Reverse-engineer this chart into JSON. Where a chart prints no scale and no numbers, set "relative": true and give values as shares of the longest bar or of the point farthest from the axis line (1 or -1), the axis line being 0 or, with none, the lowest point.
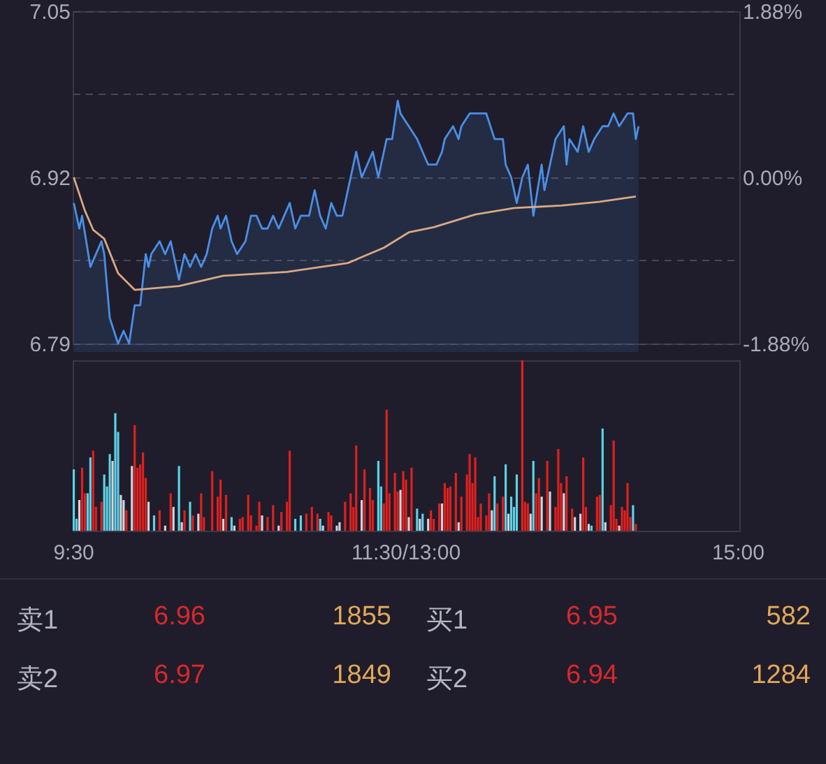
{
  "chart_data": [
    {
      "type": "line",
      "tick_labels": "y",
      "grid": "y",
      "categories": [
        null,
        null,
        null,
        null,
        null,
        null,
        null,
        null,
        null,
        null,
        null,
        null,
        null,
        null,
        null,
        null,
        null,
        null,
        null,
        null,
        null,
        null,
        null,
        null,
        null,
        null,
        null,
        null,
        null,
        null,
        null,
        null,
        null,
        null,
        null,
        null,
        null,
        null,
        null,
        null,
        null,
        null,
        null,
        null,
        null,
        null,
        null,
        null,
        null,
        null,
        null,
        null,
        null,
        null,
        null,
        null,
        null,
        null,
        null,
        null,
        null,
        null,
        null,
        null,
        null,
        null,
        null,
        null,
        null,
        null,
        null,
        null,
        null,
        null,
        null,
        null,
        null,
        null,
        null,
        null,
        null,
        null,
        null,
        null,
        null,
        null,
        null,
        null,
        null,
        null,
        null,
        null,
        null,
        null,
        null,
        null,
        null,
        null,
        null,
        null,
        null,
        null,
        null,
        null,
        null,
        null,
        null,
        null,
        null,
        null,
        null,
        null,
        null,
        null,
        null,
        null,
        null,
        null,
        null,
        null,
        null,
        null,
        null,
        null,
        null,
        null,
        null,
        null,
        null,
        null,
        null,
        null,
        null,
        null,
        null,
        null,
        null,
        null,
        null,
        null,
        null,
        null,
        null,
        null,
        null,
        null,
        null,
        null,
        null,
        null,
        null,
        null,
        null,
        null,
        null,
        null,
        null,
        null,
        null,
        null,
        null,
        null,
        null,
        null,
        null,
        null,
        null,
        null,
        null,
        null,
        null,
        null,
        null,
        null,
        null,
        null,
        null,
        null,
        null,
        null,
        null,
        null,
        null,
        null,
        null,
        null,
        null,
        null,
        null,
        null,
        null,
        null,
        null,
        null,
        null,
        null,
        null,
        null,
        null,
        null,
        null,
        null,
        null,
        null,
        null,
        null,
        null,
        null,
        null,
        null,
        null,
        null,
        null,
        null,
        null,
        null,
        null,
        null,
        null,
        null,
        null,
        null,
        null,
        null,
        null,
        null,
        null,
        null,
        null,
        null,
        null,
        null,
        null,
        null,
        null,
        null,
        null,
        null,
        null,
        null,
        null
      ],
      "ylim": [
        6.79,
        7.05
      ],
      "yticks": [
        6.79,
        {
          "value": 6.855,
          "label": null
        },
        6.92,
        {
          "value": 6.985,
          "label": null
        },
        7.05
      ],
      "y2lim": [
        -1.88,
        1.88
      ],
      "y2ticks": [
        {
          "value": -1.88,
          "label": "-1.88%"
        },
        {
          "value": 0,
          "label": "0.00%"
        },
        {
          "value": 1.88,
          "label": "1.88%"
        }
      ],
      "series": [
        {
          "type": "area",
          "color": "#4a8fe6",
          "values": [
            6.9,
            null,
            6.88,
            6.89,
            null,
            null,
            6.85,
            null,
            6.86,
            null,
            6.87,
            6.86,
            null,
            6.81,
            null,
            null,
            6.79,
            null,
            6.8,
            null,
            6.79,
            null,
            6.82,
            null,
            6.82,
            null,
            6.86,
            6.85,
            6.86,
            null,
            null,
            6.87,
            null,
            6.86,
            null,
            6.87,
            6.86,
            null,
            6.84,
            null,
            6.86,
            null,
            6.85,
            null,
            6.86,
            null,
            6.85,
            null,
            6.86,
            null,
            6.88,
            null,
            6.89,
            6.88,
            null,
            6.89,
            null,
            6.87,
            null,
            6.86,
            null,
            null,
            6.87,
            null,
            6.89,
            null,
            6.89,
            null,
            6.88,
            null,
            6.88,
            null,
            6.89,
            null,
            6.88,
            null,
            6.89,
            null,
            6.9,
            null,
            6.88,
            null,
            6.89,
            null,
            null,
            6.89,
            null,
            6.91,
            null,
            6.89,
            null,
            6.88,
            null,
            6.9,
            null,
            6.89,
            null,
            6.89,
            null,
            6.91,
            null,
            null,
            6.94,
            null,
            6.92,
            null,
            6.93,
            null,
            6.94,
            null,
            6.92,
            null,
            null,
            6.95,
            null,
            6.95,
            null,
            6.98,
            6.97,
            null,
            null,
            6.96,
            null,
            null,
            6.95,
            null,
            null,
            null,
            6.93,
            null,
            null,
            6.93,
            null,
            6.94,
            6.95,
            null,
            null,
            6.96,
            null,
            6.95,
            6.96,
            null,
            null,
            6.97,
            null,
            null,
            null,
            null,
            null,
            6.97,
            null,
            null,
            6.95,
            null,
            null,
            6.95,
            6.93,
            null,
            6.92,
            null,
            6.9,
            null,
            6.92,
            null,
            6.93,
            null,
            6.89,
            null,
            null,
            6.93,
            6.91,
            null,
            6.93,
            null,
            6.95,
            null,
            null,
            6.96,
            6.93,
            6.95,
            null,
            null,
            6.94,
            null,
            6.96,
            null,
            6.94,
            null,
            6.95,
            null,
            null,
            6.96,
            null,
            6.96,
            null,
            6.97,
            null,
            6.96,
            null,
            null,
            6.97,
            null,
            6.97,
            6.95,
            6.96,
            null,
            null,
            null,
            null,
            null,
            null,
            null,
            null,
            null,
            null,
            null,
            null,
            null,
            null,
            null,
            null,
            null,
            null,
            null,
            null,
            null,
            null,
            null,
            null,
            null,
            null,
            null,
            null,
            null,
            null,
            null,
            null,
            null,
            null,
            null,
            null
          ]
        },
        {
          "type": "line",
          "color": "#d9a982",
          "values": [
            6.92,
            null,
            null,
            null,
            6.894,
            null,
            null,
            6.879,
            null,
            null,
            null,
            6.872,
            null,
            null,
            null,
            null,
            6.845,
            null,
            null,
            null,
            null,
            null,
            6.832,
            null,
            null,
            null,
            null,
            null,
            null,
            null,
            null,
            null,
            null,
            null,
            null,
            null,
            null,
            null,
            6.835,
            null,
            null,
            null,
            null,
            null,
            null,
            null,
            null,
            null,
            null,
            null,
            null,
            null,
            null,
            null,
            6.843,
            null,
            null,
            null,
            null,
            null,
            null,
            null,
            null,
            null,
            null,
            null,
            null,
            null,
            null,
            null,
            null,
            null,
            null,
            null,
            null,
            null,
            null,
            6.846,
            null,
            null,
            null,
            null,
            null,
            null,
            null,
            null,
            null,
            null,
            null,
            null,
            null,
            null,
            null,
            null,
            null,
            null,
            null,
            null,
            null,
            6.853,
            null,
            null,
            null,
            null,
            null,
            null,
            null,
            null,
            null,
            null,
            null,
            null,
            6.865,
            null,
            null,
            null,
            null,
            null,
            null,
            null,
            null,
            6.877,
            null,
            null,
            null,
            null,
            null,
            null,
            null,
            null,
            6.881,
            null,
            null,
            null,
            null,
            null,
            null,
            null,
            null,
            null,
            null,
            null,
            null,
            null,
            null,
            6.891,
            null,
            null,
            null,
            null,
            null,
            null,
            null,
            null,
            null,
            null,
            null,
            null,
            null,
            6.896,
            null,
            null,
            null,
            null,
            null,
            null,
            null,
            null,
            null,
            null,
            null,
            null,
            null,
            null,
            null,
            null,
            6.898,
            null,
            null,
            null,
            null,
            null,
            null,
            null,
            null,
            null,
            null,
            null,
            null,
            null,
            6.901,
            null,
            null,
            null,
            null,
            null,
            null,
            null,
            null,
            null,
            null,
            null,
            null,
            6.905,
            null,
            null,
            null,
            null,
            null,
            null,
            null,
            null,
            null,
            null,
            null,
            null,
            null,
            null,
            null,
            null,
            null,
            null,
            null,
            null,
            null,
            null,
            null,
            null,
            null,
            null,
            null,
            null,
            null,
            null,
            null,
            null,
            null,
            null,
            null,
            null,
            null
          ]
        }
      ]
    },
    {
      "type": "bar",
      "relative": true,
      "tick_labels": "x",
      "categories": [
        "9:30",
        null,
        null,
        null,
        null,
        null,
        null,
        null,
        null,
        null,
        null,
        null,
        null,
        null,
        null,
        null,
        null,
        null,
        null,
        null,
        null,
        null,
        null,
        null,
        null,
        null,
        null,
        null,
        null,
        null,
        null,
        null,
        null,
        null,
        null,
        null,
        null,
        null,
        null,
        null,
        null,
        null,
        null,
        null,
        null,
        null,
        null,
        null,
        null,
        null,
        null,
        null,
        null,
        null,
        null,
        null,
        null,
        null,
        null,
        null,
        null,
        null,
        null,
        null,
        null,
        null,
        null,
        null,
        null,
        null,
        null,
        null,
        null,
        null,
        null,
        null,
        null,
        null,
        null,
        null,
        null,
        null,
        null,
        null,
        null,
        null,
        null,
        null,
        null,
        null,
        null,
        null,
        null,
        null,
        null,
        null,
        null,
        null,
        null,
        null,
        null,
        null,
        null,
        null,
        null,
        null,
        null,
        null,
        null,
        null,
        null,
        null,
        null,
        null,
        null,
        null,
        null,
        null,
        null,
        null,
        "11:30/13:00",
        null,
        null,
        null,
        null,
        null,
        null,
        null,
        null,
        null,
        null,
        null,
        null,
        null,
        null,
        null,
        null,
        null,
        null,
        null,
        null,
        null,
        null,
        null,
        null,
        null,
        null,
        null,
        null,
        null,
        null,
        null,
        null,
        null,
        null,
        null,
        null,
        null,
        null,
        null,
        null,
        null,
        null,
        null,
        null,
        null,
        null,
        null,
        null,
        null,
        null,
        null,
        null,
        null,
        null,
        null,
        null,
        null,
        null,
        null,
        null,
        null,
        null,
        null,
        null,
        null,
        null,
        null,
        null,
        null,
        null,
        null,
        null,
        null,
        null,
        null,
        null,
        null,
        null,
        null,
        null,
        null,
        null,
        null,
        null,
        null,
        null,
        null,
        null,
        null,
        null,
        null,
        null,
        null,
        null,
        null,
        null,
        null,
        null,
        null,
        null,
        null,
        null,
        null,
        null,
        null,
        null,
        null,
        null,
        null,
        null,
        null,
        null,
        null,
        null,
        null,
        null,
        null,
        null,
        null,
        "15:00"
      ],
      "values": [
        0.36,
        0.07,
        0.18,
        0.37,
        0.22,
        0.22,
        0.43,
        0.47,
        0.14,
        null,
        0.17,
        0.33,
        0.26,
        0.45,
        0.41,
        0.69,
        0.58,
        0.21,
        0.18,
        0.12,
        null,
        0.38,
        0.62,
        0.37,
        0.39,
        0.46,
        0.31,
        0.17,
        null,
        0.09,
        null,
        0.12,
        null,
        0.03,
        null,
        0.22,
        0.14,
        null,
        0.38,
        0.05,
        0.12,
        null,
        0.17,
        0.09,
        null,
        0.1,
        0.22,
        0.08,
        null,
        null,
        0.35,
        null,
        0.2,
        0.3,
        0.07,
        0.21,
        null,
        0.08,
        0.03,
        null,
        0.07,
        0.08,
        null,
        0.21,
        0.09,
        null,
        0.03,
        0.17,
        0.09,
        null,
        0.08,
        null,
        0.15,
        null,
        0.03,
        0.11,
        null,
        0.17,
        0.47,
        null,
        0.07,
        null,
        0.09,
        null,
        0.1,
        null,
        0.14,
        null,
        0.1,
        0.07,
        0.03,
        null,
        0.11,
        0.09,
        null,
        0.03,
        0.05,
        null,
        0.17,
        null,
        0.22,
        0.14,
        0.5,
        null,
        0.18,
        0.36,
        null,
        0.25,
        0.18,
        null,
        0.41,
        0.26,
        0.16,
        0.71,
        0.22,
        null,
        0.34,
        0.23,
        0.24,
        0.35,
        0.3,
        0.08,
        0.37,
        null,
        0.13,
        0.07,
        0.1,
        null,
        0.07,
        0.12,
        0.07,
        null,
        0.16,
        0.16,
        0.28,
        0.25,
        0.26,
        null,
        0.34,
        0.05,
        0.2,
        null,
        0.33,
        0.45,
        0.28,
        0.43,
        0.08,
        0.16,
        null,
        0.09,
        0.22,
        0.12,
        0.32,
        0.16,
        null,
        0.2,
        0.39,
        0.1,
        0.2,
        0.14,
        0.33,
        null,
        1.0,
        0.17,
        0.16,
        0.1,
        0.41,
        0.22,
        0.31,
        0.2,
        null,
        0.41,
        0.23,
        null,
        0.14,
        0.48,
        0.28,
        0.22,
        0.32,
        null,
        0.13,
        0.08,
        null,
        0.1,
        0.43,
        0.14,
        0.04,
        0.03,
        null,
        0.2,
        0.21,
        0.6,
        0.05,
        null,
        0.15,
        0.53,
        0.07,
        0.03,
        0.14,
        0.12,
        0.28,
        0.08,
        0.15,
        0.04,
        null,
        null,
        null,
        null,
        null,
        null,
        null,
        null,
        null,
        null,
        null,
        null,
        null,
        null,
        null,
        null,
        null,
        null,
        null,
        null,
        null,
        null,
        null,
        null,
        null,
        null,
        null,
        null,
        null,
        null,
        null,
        null,
        null,
        null,
        null,
        null,
        null
      ],
      "colors": [
        "#5cd3e8",
        "#5cd3e8",
        "#cfd5de",
        "#e0201e",
        "#e0201e",
        "#5cd3e8",
        "#5cd3e8",
        "#e0201e",
        "#e0201e",
        null,
        "#e0201e",
        "#5cd3e8",
        "#5cd3e8",
        "#5cd3e8",
        "#cfd5de",
        "#5cd3e8",
        "#5cd3e8",
        "#cfd5de",
        "#cfd5de",
        "#e0201e",
        null,
        "#cfd5de",
        "#e0201e",
        "#e0201e",
        "#e0201e",
        "#e0201e",
        "#e0201e",
        "#cfd5de",
        null,
        "#5cd3e8",
        null,
        "#e0201e",
        null,
        "#cfd5de",
        null,
        "#e0201e",
        "#cfd5de",
        null,
        "#5cd3e8",
        "#cfd5de",
        "#e0201e",
        null,
        "#5cd3e8",
        "#e0201e",
        null,
        "#cfd5de",
        "#e0201e",
        "#e0201e",
        null,
        null,
        "#e0201e",
        null,
        "#e0201e",
        "#e0201e",
        "#cfd5de",
        "#e0201e",
        null,
        "#5cd3e8",
        "#cfd5de",
        null,
        "#e0201e",
        "#e0201e",
        null,
        "#e0201e",
        "#e0201e",
        null,
        "#e0201e",
        "#e0201e",
        "#cfd5de",
        null,
        "#e0201e",
        null,
        "#e0201e",
        null,
        "#cfd5de",
        "#e0201e",
        null,
        "#e0201e",
        "#e0201e",
        null,
        "#5cd3e8",
        null,
        "#5cd3e8",
        null,
        "#e0201e",
        null,
        "#e0201e",
        null,
        "#e0201e",
        "#5cd3e8",
        "#cfd5de",
        null,
        "#e0201e",
        "#e0201e",
        null,
        "#cfd5de",
        "#cfd5de",
        null,
        "#e0201e",
        null,
        "#e0201e",
        "#e0201e",
        "#e0201e",
        null,
        "#cfd5de",
        "#e0201e",
        null,
        "#e0201e",
        "#e0201e",
        null,
        "#5cd3e8",
        "#5cd3e8",
        "#e0201e",
        "#e0201e",
        "#e0201e",
        null,
        "#e0201e",
        "#e0201e",
        "#cfd5de",
        "#e0201e",
        "#e0201e",
        "#cfd5de",
        "#e0201e",
        null,
        "#5cd3e8",
        "#cfd5de",
        "#5cd3e8",
        null,
        "#cfd5de",
        "#e0201e",
        "#e0201e",
        null,
        "#e0201e",
        "#cfd5de",
        "#e0201e",
        "#e0201e",
        "#e0201e",
        null,
        "#e0201e",
        "#cfd5de",
        "#e0201e",
        null,
        "#e0201e",
        "#e0201e",
        "#e0201e",
        "#e0201e",
        "#e0201e",
        "#e0201e",
        null,
        "#e0201e",
        "#e0201e",
        "#cfd5de",
        "#5cd3e8",
        "#e0201e",
        null,
        "#e0201e",
        "#5cd3e8",
        "#cfd5de",
        "#5cd3e8",
        "#5cd3e8",
        "#5cd3e8",
        null,
        "#e0201e",
        "#e0201e",
        "#e0201e",
        "#cfd5de",
        "#5cd3e8",
        "#e0201e",
        "#e0201e",
        "#cfd5de",
        null,
        "#e0201e",
        "#cfd5de",
        null,
        "#e0201e",
        "#e0201e",
        "#e0201e",
        "#cfd5de",
        "#e0201e",
        null,
        "#e0201e",
        "#cfd5de",
        null,
        "#cfd5de",
        "#e0201e",
        "#e0201e",
        "#cfd5de",
        "#5cd3e8",
        null,
        "#e0201e",
        "#e0201e",
        "#5cd3e8",
        "#cfd5de",
        null,
        "#e0201e",
        "#e0201e",
        "#e0201e",
        "#cfd5de",
        "#e0201e",
        "#e0201e",
        "#e0201e",
        "#e0201e",
        "#5cd3e8",
        "#e0201e",
        null,
        null,
        null,
        null,
        null,
        null,
        null,
        null,
        null,
        null,
        null,
        null,
        null,
        null,
        null,
        null,
        null,
        null,
        null,
        null,
        null,
        null,
        null,
        null,
        null,
        null,
        null,
        null,
        null,
        null,
        null,
        null,
        null,
        null,
        null,
        null,
        null
      ]
    },
    {
      "type": "other",
      "annotations": [
        "卖1",
        "6.96",
        "1855",
        "买1",
        "6.95",
        "582",
        "卖2",
        "6.97",
        "1849",
        "买2",
        "6.94",
        "1284"
      ]
    }
  ]
}
